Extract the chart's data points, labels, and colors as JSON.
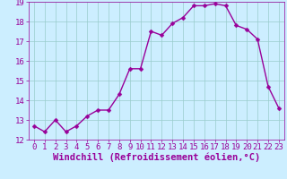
{
  "x": [
    0,
    1,
    2,
    3,
    4,
    5,
    6,
    7,
    8,
    9,
    10,
    11,
    12,
    13,
    14,
    15,
    16,
    17,
    18,
    19,
    20,
    21,
    22,
    23
  ],
  "y": [
    12.7,
    12.4,
    13.0,
    12.4,
    12.7,
    13.2,
    13.5,
    13.5,
    14.3,
    15.6,
    15.6,
    17.5,
    17.3,
    17.9,
    18.2,
    18.8,
    18.8,
    18.9,
    18.8,
    17.8,
    17.6,
    17.1,
    14.7,
    13.6
  ],
  "line_color": "#990099",
  "marker_color": "#990099",
  "bg_color": "#cceeff",
  "grid_color": "#99cccc",
  "xlabel": "Windchill (Refroidissement éolien,°C)",
  "xlabel_color": "#990099",
  "ylim": [
    12,
    19
  ],
  "xlim": [
    -0.5,
    23.5
  ],
  "yticks": [
    12,
    13,
    14,
    15,
    16,
    17,
    18,
    19
  ],
  "xticks": [
    0,
    1,
    2,
    3,
    4,
    5,
    6,
    7,
    8,
    9,
    10,
    11,
    12,
    13,
    14,
    15,
    16,
    17,
    18,
    19,
    20,
    21,
    22,
    23
  ],
  "tick_color": "#990099",
  "tick_fontsize": 6.5,
  "xlabel_fontsize": 7.5,
  "line_width": 1.0,
  "marker_size": 2.5
}
